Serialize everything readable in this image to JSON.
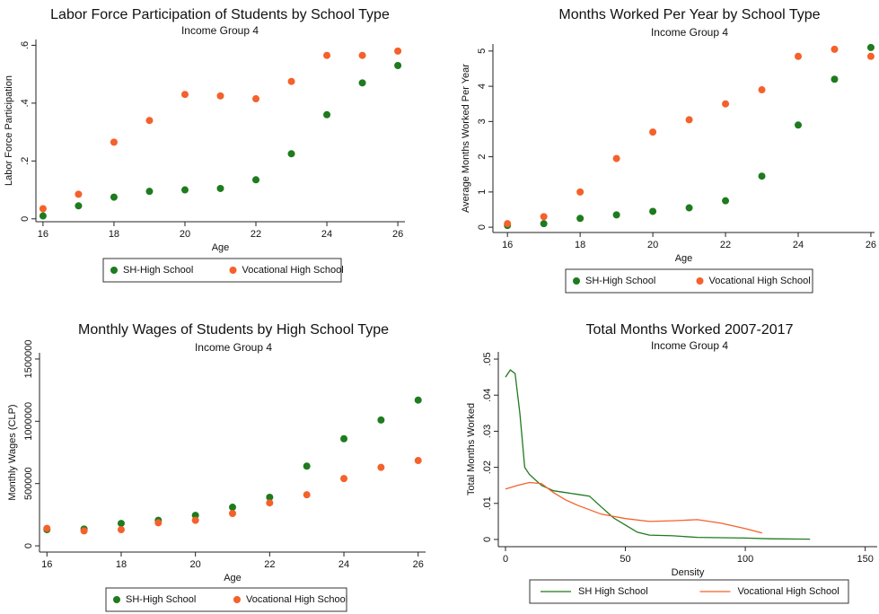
{
  "chart_data": [
    {
      "type": "scatter",
      "title": "Labor Force Participation of Students by School Type",
      "subtitle": "Income Group 4",
      "x_label": "Age",
      "y_label": "Labor Force Participation",
      "x": [
        16,
        17,
        18,
        19,
        20,
        21,
        22,
        23,
        24,
        25,
        26
      ],
      "series": [
        {
          "name": "SH-High School",
          "color": "#1e7b1e",
          "values": [
            0.01,
            0.045,
            0.075,
            0.095,
            0.1,
            0.105,
            0.135,
            0.225,
            0.36,
            0.47,
            0.53
          ]
        },
        {
          "name": "Vocational High School",
          "color": "#f4612b",
          "values": [
            0.035,
            0.085,
            0.265,
            0.34,
            0.43,
            0.425,
            0.415,
            0.475,
            0.565,
            0.565,
            0.58
          ]
        }
      ],
      "xlim": [
        15.8,
        26.2
      ],
      "xticks": [
        16,
        18,
        20,
        22,
        24,
        26
      ],
      "ylim": [
        -0.01,
        0.62
      ],
      "yticks": [
        0,
        {
          "value": 0.2,
          "label": ".2"
        },
        {
          "value": 0.4,
          "label": ".4"
        },
        {
          "value": 0.6,
          "label": ".6"
        }
      ],
      "legend": "bottom",
      "grid": false
    },
    {
      "type": "scatter",
      "title": "Months Worked Per Year by School Type",
      "subtitle": "Income Group 4",
      "x_label": "Age",
      "y_label": "Average Months Worked Per Year",
      "x": [
        16,
        17,
        18,
        19,
        20,
        21,
        22,
        23,
        24,
        25,
        26
      ],
      "series": [
        {
          "name": "SH-High School",
          "color": "#1e7b1e",
          "values": [
            0.05,
            0.1,
            0.25,
            0.35,
            0.45,
            0.55,
            0.75,
            1.45,
            2.9,
            4.2,
            5.1
          ]
        },
        {
          "name": "Vocational High School",
          "color": "#f4612b",
          "values": [
            0.1,
            0.3,
            1.0,
            1.95,
            2.7,
            3.05,
            3.5,
            3.9,
            4.85,
            5.05,
            4.85
          ]
        }
      ],
      "xlim": [
        15.6,
        26.1
      ],
      "xticks": [
        16,
        18,
        20,
        22,
        24,
        26
      ],
      "ylim": [
        -0.15,
        5.2
      ],
      "yticks": [
        0,
        1,
        2,
        3,
        4,
        5
      ],
      "legend": "bottom",
      "grid": false
    },
    {
      "type": "scatter",
      "title": "Monthly Wages of Students by High School Type",
      "subtitle": "Income Group 4",
      "x_label": "Age",
      "y_label": "Monthly Wages (CLP)",
      "x": [
        16,
        17,
        18,
        19,
        20,
        21,
        22,
        23,
        24,
        25,
        26
      ],
      "series": [
        {
          "name": "SH-High School",
          "color": "#1e7b1e",
          "values": [
            130000,
            135000,
            180000,
            205000,
            245000,
            310000,
            390000,
            640000,
            860000,
            1010000,
            1170000
          ]
        },
        {
          "name": "Vocational High School",
          "color": "#f4612b",
          "values": [
            140000,
            120000,
            130000,
            185000,
            205000,
            260000,
            345000,
            410000,
            540000,
            630000,
            685000
          ]
        }
      ],
      "xlim": [
        15.8,
        26.2
      ],
      "xticks": [
        16,
        18,
        20,
        22,
        24,
        26
      ],
      "ylim": [
        -50000,
        1550000
      ],
      "yticks": [
        0,
        500000,
        1000000,
        1500000
      ],
      "legend": "bottom",
      "grid": false
    },
    {
      "type": "line",
      "title": "Total Months Worked 2007-2017",
      "subtitle": "Income Group 4",
      "x_label": "Density",
      "y_label": "Total Months Worked",
      "series": [
        {
          "name": "SH High School",
          "color": "#1e7b1e",
          "x": [
            0,
            2,
            4,
            6,
            8,
            10,
            15,
            20,
            25,
            30,
            35,
            40,
            45,
            50,
            55,
            60,
            70,
            80,
            90,
            100,
            110,
            127
          ],
          "values": [
            0.045,
            0.047,
            0.046,
            0.035,
            0.02,
            0.018,
            0.015,
            0.0135,
            0.013,
            0.0125,
            0.012,
            0.009,
            0.006,
            0.004,
            0.002,
            0.0012,
            0.001,
            0.0006,
            0.0005,
            0.0004,
            0.0002,
            0.0001
          ]
        },
        {
          "name": "Vocational High School",
          "color": "#f4612b",
          "x": [
            0,
            5,
            10,
            15,
            20,
            25,
            30,
            40,
            50,
            60,
            70,
            80,
            90,
            100,
            107
          ],
          "values": [
            0.014,
            0.015,
            0.0158,
            0.0155,
            0.013,
            0.011,
            0.0095,
            0.007,
            0.0058,
            0.005,
            0.0052,
            0.0055,
            0.0045,
            0.003,
            0.0018
          ]
        }
      ],
      "xlim": [
        -3,
        155
      ],
      "xticks": [
        0,
        50,
        100,
        150
      ],
      "ylim": [
        -0.002,
        0.052
      ],
      "yticks": [
        0,
        {
          "value": 0.01,
          "label": ".01"
        },
        {
          "value": 0.02,
          "label": ".02"
        },
        {
          "value": 0.03,
          "label": ".03"
        },
        {
          "value": 0.04,
          "label": ".04"
        },
        {
          "value": 0.05,
          "label": ".05"
        }
      ],
      "legend": "bottom",
      "grid": false
    }
  ]
}
